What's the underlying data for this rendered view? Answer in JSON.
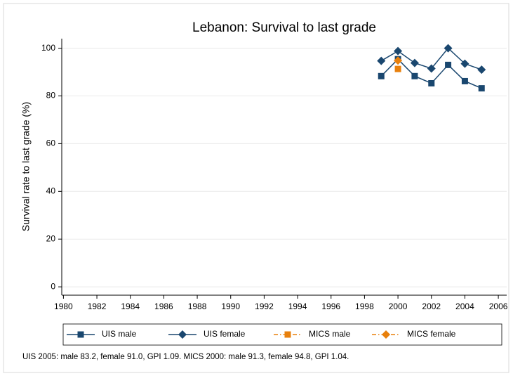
{
  "chart_data": {
    "type": "line",
    "title": "Lebanon: Survival to last grade",
    "y_label": "Survival rate to last grade (%)",
    "note": "UIS 2005: male 83.2, female 91.0, GPI 1.09. MICS 2000: male 91.3, female 94.8, GPI 1.04.",
    "xlim": [
      1979.9,
      2006.5
    ],
    "xticks": [
      1980,
      1982,
      1984,
      1986,
      1988,
      1990,
      1992,
      1994,
      1996,
      1998,
      2000,
      2002,
      2004,
      2006
    ],
    "ylim": [
      -3.5,
      104
    ],
    "yticks": [
      0,
      20,
      40,
      60,
      80,
      100
    ],
    "grid": true,
    "legend": "bottom",
    "series": [
      {
        "name": "UIS male",
        "color": "#1a476f",
        "marker": "square",
        "line_style": "solid",
        "x": [
          1999,
          2000,
          2001,
          2002,
          2003,
          2004,
          2005
        ],
        "values": [
          88.3,
          95.4,
          88.3,
          85.3,
          93.0,
          86.2,
          83.2
        ]
      },
      {
        "name": "UIS female",
        "color": "#1a476f",
        "marker": "diamond",
        "line_style": "solid",
        "x": [
          1999,
          2000,
          2001,
          2002,
          2003,
          2004,
          2005
        ],
        "values": [
          94.7,
          98.8,
          93.8,
          91.5,
          100.0,
          93.5,
          91.0
        ]
      },
      {
        "name": "MICS male",
        "color": "#e8800c",
        "marker": "square",
        "line_style": "dash-dot",
        "x": [
          2000
        ],
        "values": [
          91.3
        ]
      },
      {
        "name": "MICS female",
        "color": "#e8800c",
        "marker": "diamond",
        "line_style": "dash-dot",
        "x": [
          2000
        ],
        "values": [
          94.8
        ]
      }
    ]
  }
}
